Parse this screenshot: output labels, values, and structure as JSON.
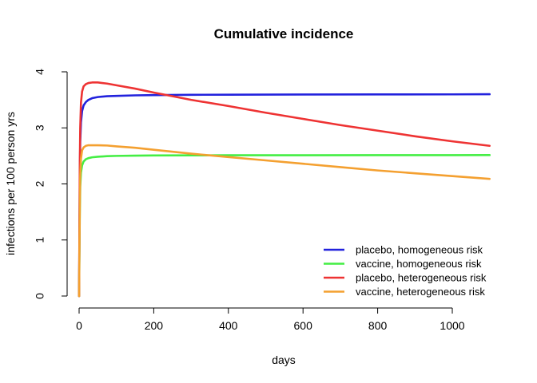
{
  "chart_data": {
    "type": "line",
    "title": "Cumulative incidence",
    "xlabel": "days",
    "ylabel": "infections per 100 person yrs",
    "xlim": [
      0,
      1100
    ],
    "ylim": [
      0,
      4
    ],
    "xticks": [
      0,
      200,
      400,
      600,
      800,
      1000
    ],
    "yticks": [
      0,
      1,
      2,
      3,
      4
    ],
    "grid": false,
    "legend_position": "bottom-right",
    "series": [
      {
        "name": "placebo, homogeneous risk",
        "color": "#2222dd",
        "x": [
          0,
          1,
          2,
          3,
          5,
          8,
          12,
          18,
          25,
          35,
          50,
          75,
          100,
          150,
          200,
          300,
          400,
          600,
          800,
          1000,
          1100
        ],
        "y": [
          0,
          1.3,
          2.2,
          2.75,
          3.1,
          3.3,
          3.4,
          3.46,
          3.5,
          3.53,
          3.55,
          3.565,
          3.57,
          3.58,
          3.585,
          3.59,
          3.592,
          3.595,
          3.597,
          3.598,
          3.6
        ]
      },
      {
        "name": "vaccine, homogeneous risk",
        "color": "#44ee44",
        "x": [
          0,
          1,
          2,
          3,
          5,
          8,
          12,
          18,
          25,
          35,
          50,
          75,
          100,
          150,
          200,
          300,
          400,
          600,
          800,
          1000,
          1100
        ],
        "y": [
          0,
          0.9,
          1.55,
          1.95,
          2.2,
          2.33,
          2.4,
          2.44,
          2.46,
          2.475,
          2.485,
          2.495,
          2.5,
          2.505,
          2.508,
          2.51,
          2.511,
          2.512,
          2.513,
          2.514,
          2.515
        ]
      },
      {
        "name": "placebo, heterogeneous risk",
        "color": "#ee3333",
        "x": [
          0,
          1,
          2,
          3,
          5,
          8,
          12,
          18,
          25,
          35,
          50,
          75,
          100,
          150,
          200,
          300,
          400,
          500,
          600,
          700,
          800,
          900,
          1000,
          1100
        ],
        "y": [
          0,
          1.4,
          2.4,
          3.0,
          3.45,
          3.65,
          3.74,
          3.78,
          3.8,
          3.81,
          3.81,
          3.79,
          3.76,
          3.7,
          3.63,
          3.5,
          3.39,
          3.27,
          3.16,
          3.05,
          2.95,
          2.85,
          2.76,
          2.68
        ]
      },
      {
        "name": "vaccine, heterogeneous risk",
        "color": "#f4a030",
        "x": [
          0,
          1,
          2,
          3,
          5,
          8,
          12,
          18,
          25,
          35,
          50,
          75,
          100,
          150,
          200,
          300,
          400,
          500,
          600,
          700,
          800,
          900,
          1000,
          1100
        ],
        "y": [
          0,
          1.0,
          1.7,
          2.15,
          2.45,
          2.6,
          2.65,
          2.68,
          2.69,
          2.69,
          2.69,
          2.685,
          2.67,
          2.645,
          2.61,
          2.54,
          2.48,
          2.42,
          2.36,
          2.3,
          2.24,
          2.19,
          2.14,
          2.09
        ]
      }
    ]
  }
}
